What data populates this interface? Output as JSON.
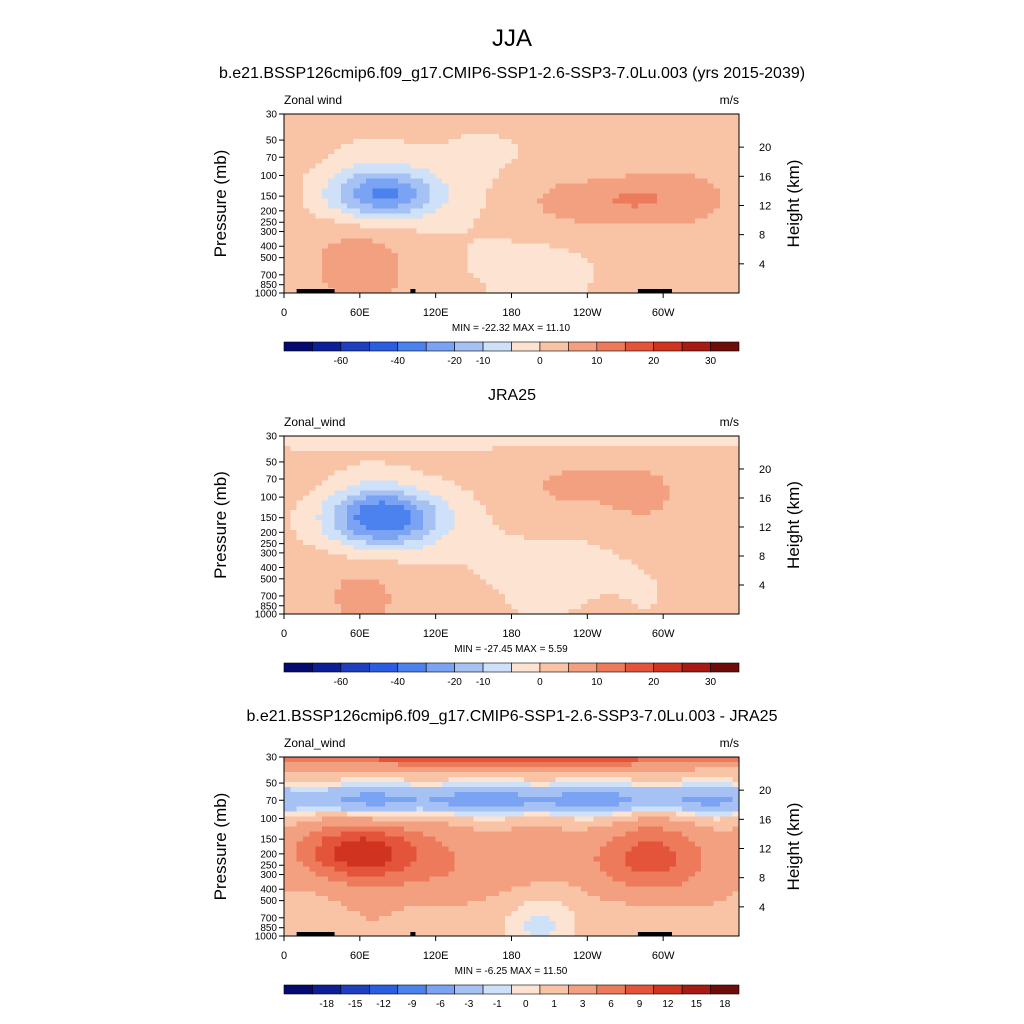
{
  "figure": {
    "season": "JJA",
    "colors": {
      "land": "#000000",
      "axis": "#000000",
      "background": "#ffffff"
    }
  },
  "chart_data": [
    {
      "type": "heatmap",
      "title": "b.e21.BSSP126cmip6.f09_g17.CMIP6-SSP1-2.6-SSP3-7.0Lu.003 (yrs 2015-2039)",
      "left_label": "Zonal wind",
      "units": "m/s",
      "xlabel": "",
      "ylabel": "Pressure (mb)",
      "ylabel_right": "Height (km)",
      "x_ticks": [
        "0",
        "60E",
        "120E",
        "180",
        "120W",
        "60W"
      ],
      "y_ticks": [
        "30",
        "50",
        "70",
        "100",
        "150",
        "200",
        "250",
        "300",
        "400",
        "500",
        "700",
        "850",
        "1000"
      ],
      "height_ticks": [
        "20",
        "16",
        "12",
        "8",
        "4"
      ],
      "xlim": [
        0,
        360
      ],
      "ylim": [
        1000,
        30
      ],
      "minmax_text": "MIN = -22.32  MAX =  11.10",
      "min": -22.32,
      "max": 11.1,
      "levels": [
        -70,
        -60,
        -50,
        -40,
        -30,
        -20,
        -15,
        -10,
        -5,
        0,
        5,
        10,
        15,
        20,
        25,
        30,
        35
      ],
      "colorbar_labels": [
        "-60",
        "-40",
        "-20",
        "-10",
        "0",
        "10",
        "20",
        "30"
      ],
      "features": [
        {
          "lon": 80,
          "p": 145,
          "v": -22,
          "slon": 45,
          "slogp": 0.22
        },
        {
          "lon": 275,
          "p": 160,
          "v": 8,
          "slon": 55,
          "slogp": 0.22
        },
        {
          "lon": 330,
          "p": 150,
          "v": 4,
          "slon": 30,
          "slogp": 0.3
        },
        {
          "lon": 220,
          "p": 200,
          "v": 4,
          "slon": 60,
          "slogp": 0.35
        },
        {
          "lon": 60,
          "p": 600,
          "v": 7,
          "slon": 45,
          "slogp": 0.4
        },
        {
          "lon": 200,
          "p": 500,
          "v": -3,
          "slon": 70,
          "slogp": 0.5
        },
        {
          "lon": 160,
          "p": 70,
          "v": -1.5,
          "slon": 120,
          "slogp": 0.25
        }
      ],
      "base": 1,
      "land_blocks": [
        [
          10,
          40
        ],
        [
          100,
          104
        ],
        [
          280,
          307
        ]
      ]
    },
    {
      "type": "heatmap",
      "title": "JRA25",
      "left_label": "Zonal_wind",
      "units": "m/s",
      "xlabel": "",
      "ylabel": "Pressure (mb)",
      "ylabel_right": "Height (km)",
      "x_ticks": [
        "0",
        "60E",
        "120E",
        "180",
        "120W",
        "60W"
      ],
      "y_ticks": [
        "30",
        "50",
        "70",
        "100",
        "150",
        "200",
        "250",
        "300",
        "400",
        "500",
        "700",
        "850",
        "1000"
      ],
      "height_ticks": [
        "20",
        "16",
        "12",
        "8",
        "4"
      ],
      "xlim": [
        0,
        360
      ],
      "ylim": [
        1000,
        30
      ],
      "minmax_text": "MIN = -27.45  MAX =   5.59",
      "min": -27.45,
      "max": 5.59,
      "levels": [
        -70,
        -60,
        -50,
        -40,
        -30,
        -20,
        -15,
        -10,
        -5,
        0,
        5,
        10,
        15,
        20,
        25,
        30,
        35
      ],
      "colorbar_labels": [
        "-60",
        "-40",
        "-20",
        "-10",
        "0",
        "10",
        "20",
        "30"
      ],
      "features": [
        {
          "lon": 80,
          "p": 150,
          "v": -27,
          "slon": 45,
          "slogp": 0.25
        },
        {
          "lon": 250,
          "p": 100,
          "v": 6,
          "slon": 80,
          "slogp": 0.45
        },
        {
          "lon": 220,
          "p": 300,
          "v": -4,
          "slon": 70,
          "slogp": 0.45
        },
        {
          "lon": 60,
          "p": 700,
          "v": 5,
          "slon": 45,
          "slogp": 0.35
        },
        {
          "lon": 180,
          "p": 30,
          "v": -5,
          "slon": 400,
          "slogp": 0.1
        }
      ],
      "base": 1,
      "land_blocks": []
    },
    {
      "type": "heatmap",
      "title": "b.e21.BSSP126cmip6.f09_g17.CMIP6-SSP1-2.6-SSP3-7.0Lu.003 - JRA25",
      "left_label": "Zonal_wind",
      "units": "m/s",
      "xlabel": "",
      "ylabel": "Pressure (mb)",
      "ylabel_right": "Height (km)",
      "x_ticks": [
        "0",
        "60E",
        "120E",
        "180",
        "120W",
        "60W"
      ],
      "y_ticks": [
        "30",
        "50",
        "70",
        "100",
        "150",
        "200",
        "250",
        "300",
        "400",
        "500",
        "700",
        "850",
        "1000"
      ],
      "height_ticks": [
        "20",
        "16",
        "12",
        "8",
        "4"
      ],
      "xlim": [
        0,
        360
      ],
      "ylim": [
        1000,
        30
      ],
      "minmax_text": "MIN =  -6.25  MAX =  11.50",
      "min": -6.25,
      "max": 11.5,
      "levels": [
        -21,
        -18,
        -15,
        -12,
        -9,
        -6,
        -3,
        -1,
        0,
        1,
        3,
        6,
        9,
        12,
        15,
        18,
        21
      ],
      "colorbar_labels": [
        "-18",
        "-15",
        "-12",
        "-9",
        "-6",
        "-3",
        "-1",
        "0",
        "1",
        "3",
        "6",
        "9",
        "12",
        "15",
        "18"
      ],
      "features": [
        {
          "lon": 180,
          "p": 30,
          "v": 8,
          "slon": 400,
          "slogp": 0.08
        },
        {
          "lon": 180,
          "p": 70,
          "v": -6,
          "slon": 400,
          "slogp": 0.14
        },
        {
          "lon": 60,
          "p": 190,
          "v": 11,
          "slon": 40,
          "slogp": 0.22
        },
        {
          "lon": 290,
          "p": 220,
          "v": 8,
          "slon": 50,
          "slogp": 0.3
        },
        {
          "lon": 120,
          "p": 250,
          "v": 4,
          "slon": 90,
          "slogp": 0.35
        },
        {
          "lon": 200,
          "p": 700,
          "v": -2,
          "slon": 60,
          "slogp": 0.3
        }
      ],
      "base": 2,
      "land_blocks": [
        [
          10,
          40
        ],
        [
          100,
          104
        ],
        [
          280,
          307
        ]
      ]
    }
  ]
}
